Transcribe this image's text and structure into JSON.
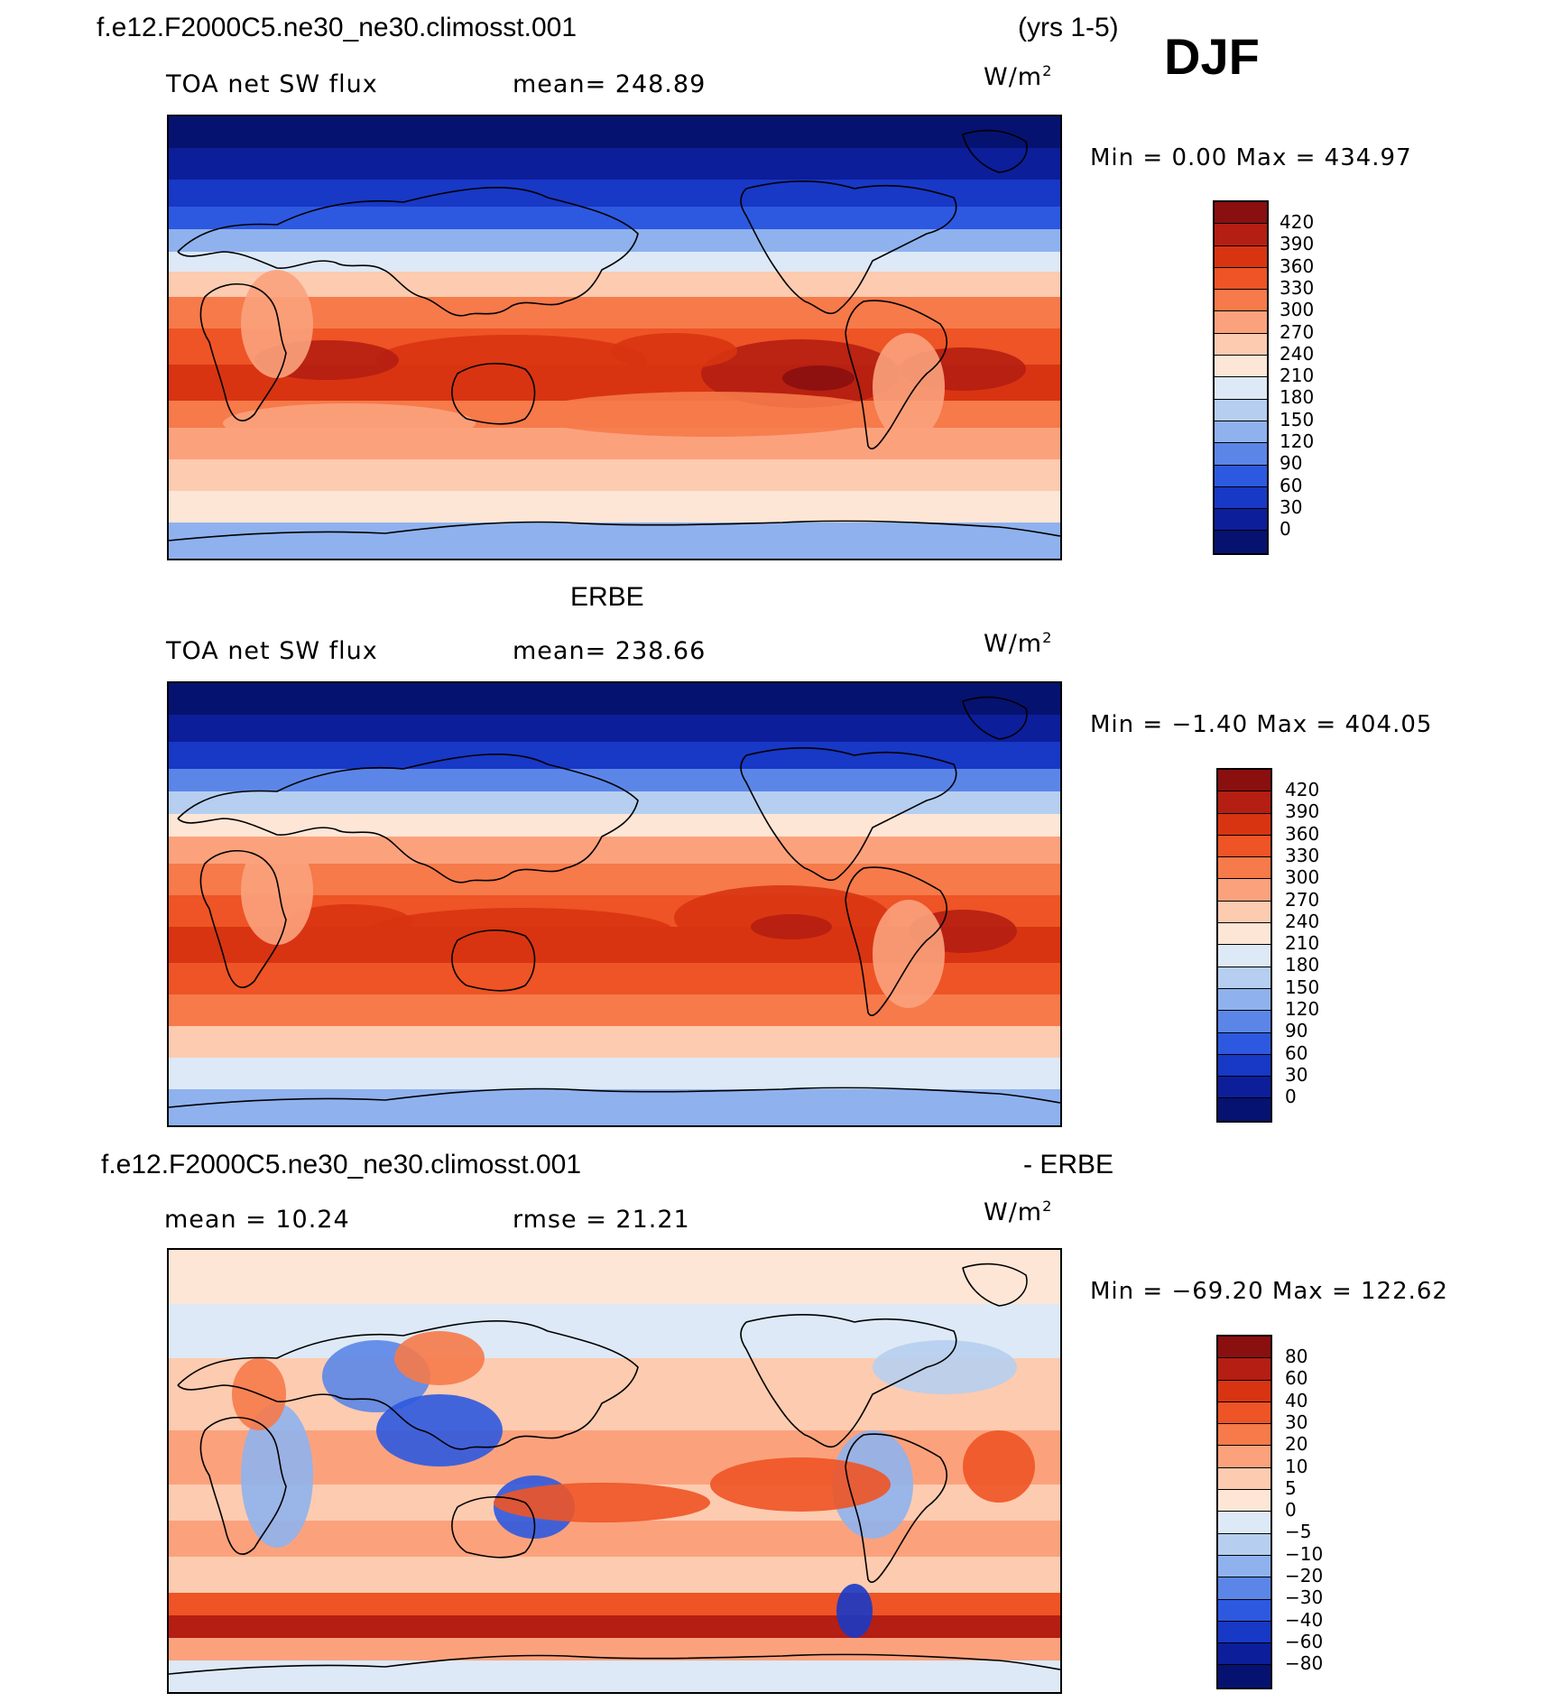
{
  "header": {
    "case_name": "f.e12.F2000C5.ne30_ne30.climosst.001",
    "years": "(yrs 1-5)",
    "season": "DJF"
  },
  "panels": [
    {
      "id": "model",
      "title": "",
      "variable": "TOA net SW flux",
      "left_stat": "TOA net SW flux",
      "center_stat": "mean=  248.89",
      "units_base": "W/m",
      "units_exp": "2",
      "minmax": "Min =    0.00 Max = 434.97",
      "colorbar_labels": [
        "420",
        "390",
        "360",
        "330",
        "300",
        "270",
        "240",
        "210",
        "180",
        "150",
        "120",
        "90",
        "60",
        "30",
        "0"
      ],
      "colorbar_colors": [
        "#8a0f0f",
        "#b51e12",
        "#d83412",
        "#ee5425",
        "#f67a4a",
        "#fba27d",
        "#fdcbb0",
        "#fde6d6",
        "#dde9f6",
        "#b6cff0",
        "#8fb2ee",
        "#5b86e8",
        "#2d59e0",
        "#1838c6",
        "#0c1e9a",
        "#061270"
      ],
      "data_range": [
        0,
        434.97
      ]
    },
    {
      "id": "obs",
      "title": "ERBE",
      "left_stat": "TOA net SW flux",
      "center_stat": "mean=  238.66",
      "units_base": "W/m",
      "units_exp": "2",
      "minmax": "Min =  −1.40 Max = 404.05",
      "colorbar_labels": [
        "420",
        "390",
        "360",
        "330",
        "300",
        "270",
        "240",
        "210",
        "180",
        "150",
        "120",
        "90",
        "60",
        "30",
        "0"
      ],
      "colorbar_colors": [
        "#8a0f0f",
        "#b51e12",
        "#d83412",
        "#ee5425",
        "#f67a4a",
        "#fba27d",
        "#fdcbb0",
        "#fde6d6",
        "#dde9f6",
        "#b6cff0",
        "#8fb2ee",
        "#5b86e8",
        "#2d59e0",
        "#1838c6",
        "#0c1e9a",
        "#061270"
      ],
      "data_range": [
        -1.4,
        404.05
      ]
    },
    {
      "id": "diff",
      "title_left": "f.e12.F2000C5.ne30_ne30.climosst.001",
      "title_right": "- ERBE",
      "left_stat": "mean =   10.24",
      "center_stat": "rmse =   21.21",
      "units_base": "W/m",
      "units_exp": "2",
      "minmax": "Min = −69.20 Max = 122.62",
      "colorbar_labels": [
        "80",
        "60",
        "40",
        "30",
        "20",
        "10",
        "5",
        "0",
        "−5",
        "−10",
        "−20",
        "−30",
        "−40",
        "−60",
        "−80"
      ],
      "colorbar_colors": [
        "#8a0f0f",
        "#b51e12",
        "#d83412",
        "#ee5425",
        "#f67a4a",
        "#fba27d",
        "#fdcbb0",
        "#fde6d6",
        "#dde9f6",
        "#b6cff0",
        "#8fb2ee",
        "#5b86e8",
        "#2d59e0",
        "#1838c6",
        "#0c1e9a",
        "#061270"
      ],
      "data_range": [
        -69.2,
        122.62
      ]
    }
  ]
}
